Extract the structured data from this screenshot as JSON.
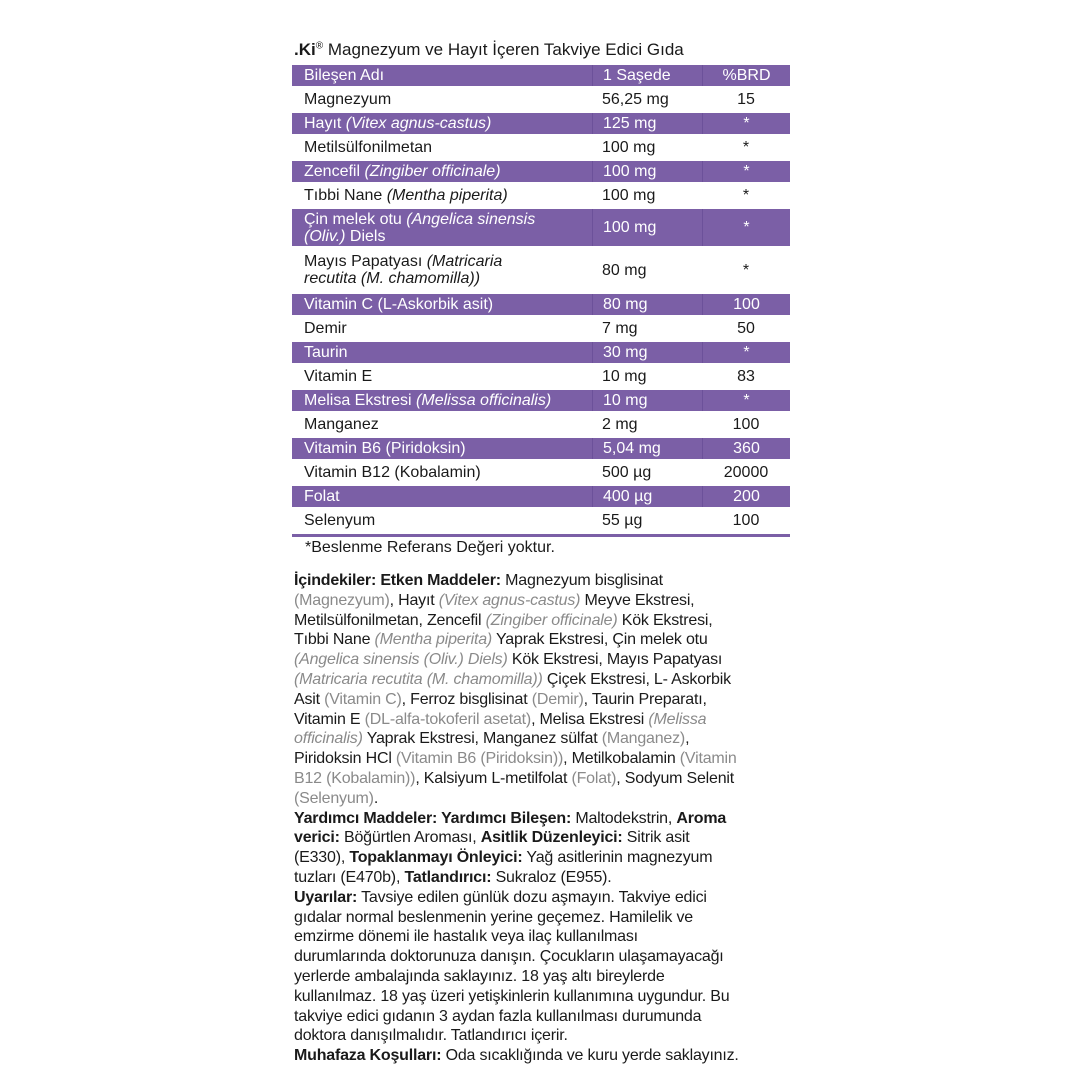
{
  "title": {
    "brand": ".Ki",
    "registered": "®",
    "text": " Magnezyum ve Hayıt İçeren Takviye Edici Gıda"
  },
  "accent_color": "#7b5fa6",
  "table": {
    "headers": [
      "Bileşen Adı",
      "1 Saşede",
      "%BRD"
    ],
    "rows": [
      {
        "name": [
          [
            "n",
            "Magnezyum"
          ]
        ],
        "amount": "56,25 mg",
        "brd": "15"
      },
      {
        "name": [
          [
            "n",
            "Hayıt "
          ],
          [
            "i",
            "(Vitex agnus-castus)"
          ]
        ],
        "amount": "125 mg",
        "brd": "*"
      },
      {
        "name": [
          [
            "n",
            "Metilsülfonilmetan"
          ]
        ],
        "amount": "100 mg",
        "brd": "*"
      },
      {
        "name": [
          [
            "n",
            "Zencefil "
          ],
          [
            "i",
            "(Zingiber officinale)"
          ]
        ],
        "amount": "100 mg",
        "brd": "*"
      },
      {
        "name": [
          [
            "n",
            "Tıbbi Nane "
          ],
          [
            "i",
            "(Mentha piperita)"
          ]
        ],
        "amount": "100 mg",
        "brd": "*"
      },
      {
        "name": [
          [
            "n",
            "Çin melek otu "
          ],
          [
            "i",
            "(Angelica sinensis"
          ],
          [
            "br",
            ""
          ],
          [
            "i",
            "(Oliv.)"
          ],
          [
            "n",
            " Diels"
          ]
        ],
        "amount": "100 mg",
        "brd": "*"
      },
      {
        "name": [
          [
            "n",
            "Mayıs Papatyası "
          ],
          [
            "i",
            "(Matricaria"
          ],
          [
            "br",
            ""
          ],
          [
            "i",
            "recutita (M. chamomilla))"
          ]
        ],
        "amount": "80 mg",
        "brd": "*"
      },
      {
        "name": [
          [
            "n",
            "Vitamin C (L-Askorbik asit)"
          ]
        ],
        "amount": "80 mg",
        "brd": "100"
      },
      {
        "name": [
          [
            "n",
            "Demir"
          ]
        ],
        "amount": "7 mg",
        "brd": "50"
      },
      {
        "name": [
          [
            "n",
            "Taurin"
          ]
        ],
        "amount": "30 mg",
        "brd": "*"
      },
      {
        "name": [
          [
            "n",
            "Vitamin E"
          ]
        ],
        "amount": "10 mg",
        "brd": "83"
      },
      {
        "name": [
          [
            "n",
            "Melisa Ekstresi "
          ],
          [
            "i",
            "(Melissa officinalis)"
          ]
        ],
        "amount": "10 mg",
        "brd": "*"
      },
      {
        "name": [
          [
            "n",
            "Manganez"
          ]
        ],
        "amount": "2 mg",
        "brd": "100"
      },
      {
        "name": [
          [
            "n",
            "Vitamin B6 (Piridoksin)"
          ]
        ],
        "amount": "5,04 mg",
        "brd": "360"
      },
      {
        "name": [
          [
            "n",
            "Vitamin B12 (Kobalamin)"
          ]
        ],
        "amount": "500 µg",
        "brd": "20000"
      },
      {
        "name": [
          [
            "n",
            "Folat"
          ]
        ],
        "amount": "400 µg",
        "brd": "200"
      },
      {
        "name": [
          [
            "n",
            "Selenyum"
          ]
        ],
        "amount": "55 µg",
        "brd": "100"
      }
    ],
    "footnote": "*Beslenme Referans Değeri yoktur."
  },
  "ingredients": [
    [
      [
        "b",
        "İçindekiler: Etken Maddeler:"
      ],
      [
        "n",
        " Magnezyum bisglisinat"
      ]
    ],
    [
      [
        "g",
        "(Magnezyum)"
      ],
      [
        "n",
        ", Hayıt "
      ],
      [
        "gi",
        "(Vitex agnus-castus)"
      ],
      [
        "n",
        " Meyve Ekstresi,"
      ]
    ],
    [
      [
        "n",
        "Metilsülfonilmetan, Zencefil "
      ],
      [
        "gi",
        "(Zingiber officinale)"
      ],
      [
        "n",
        " Kök Ekstresi,"
      ]
    ],
    [
      [
        "n",
        "Tıbbi Nane "
      ],
      [
        "gi",
        "(Mentha piperita)"
      ],
      [
        "n",
        " Yaprak Ekstresi, Çin melek otu"
      ]
    ],
    [
      [
        "gi",
        "(Angelica sinensis (Oliv.) Diels)"
      ],
      [
        "n",
        " Kök Ekstresi, Mayıs Papatyası"
      ]
    ],
    [
      [
        "gi",
        "(Matricaria recutita (M. chamomilla))"
      ],
      [
        "n",
        " Çiçek Ekstresi, L- Askorbik"
      ]
    ],
    [
      [
        "n",
        "Asit "
      ],
      [
        "g",
        "(Vitamin C)"
      ],
      [
        "n",
        ", Ferroz bisglisinat "
      ],
      [
        "g",
        "(Demir)"
      ],
      [
        "n",
        ", Taurin Preparatı,"
      ]
    ],
    [
      [
        "n",
        "Vitamin E "
      ],
      [
        "g",
        "(DL-alfa-tokoferil asetat)"
      ],
      [
        "n",
        ", Melisa Ekstresi "
      ],
      [
        "gi",
        "(Melissa"
      ]
    ],
    [
      [
        "gi",
        "officinalis)"
      ],
      [
        "n",
        " Yaprak Ekstresi, Manganez sülfat "
      ],
      [
        "g",
        "(Manganez)"
      ],
      [
        "n",
        ","
      ]
    ],
    [
      [
        "n",
        "Piridoksin HCl "
      ],
      [
        "g",
        "(Vitamin B6 (Piridoksin))"
      ],
      [
        "n",
        ", Metilkobalamin "
      ],
      [
        "g",
        "(Vitamin"
      ]
    ],
    [
      [
        "g",
        "B12 (Kobalamin))"
      ],
      [
        "n",
        ", Kalsiyum L-metilfolat "
      ],
      [
        "g",
        "(Folat)"
      ],
      [
        "n",
        ", Sodyum Selenit"
      ]
    ],
    [
      [
        "g",
        "(Selenyum)"
      ],
      [
        "n",
        "."
      ]
    ],
    [
      [
        "b",
        "Yardımcı Maddeler: Yardımcı Bileşen:"
      ],
      [
        "n",
        " Maltodekstrin, "
      ],
      [
        "b",
        "Aroma"
      ]
    ],
    [
      [
        "b",
        "verici:"
      ],
      [
        "n",
        " Böğürtlen Aroması, "
      ],
      [
        "b",
        "Asitlik Düzenleyici:"
      ],
      [
        "n",
        " Sitrik asit"
      ]
    ],
    [
      [
        "n",
        "(E330), "
      ],
      [
        "b",
        "Topaklanmayı Önleyici:"
      ],
      [
        "n",
        " Yağ asitlerinin magnezyum"
      ]
    ],
    [
      [
        "n",
        "tuzları (E470b), "
      ],
      [
        "b",
        "Tatlandırıcı:"
      ],
      [
        "n",
        " Sukraloz (E955)."
      ]
    ],
    [
      [
        "b",
        "Uyarılar:"
      ],
      [
        "n",
        " Tavsiye edilen günlük dozu aşmayın. Takviye edici"
      ]
    ],
    [
      [
        "n",
        "gıdalar normal beslenmenin yerine geçemez. Hamilelik ve"
      ]
    ],
    [
      [
        "n",
        "emzirme dönemi ile hastalık veya ilaç kullanılması"
      ]
    ],
    [
      [
        "n",
        "durumlarında doktorunuza danışın. Çocukların ulaşamayacağı"
      ]
    ],
    [
      [
        "n",
        "yerlerde ambalajında saklayınız. 18 yaş altı bireylerde"
      ]
    ],
    [
      [
        "n",
        "kullanılmaz. 18 yaş üzeri yetişkinlerin kullanımına uygundur. Bu"
      ]
    ],
    [
      [
        "n",
        "takviye edici gıdanın 3 aydan fazla kullanılması durumunda"
      ]
    ],
    [
      [
        "n",
        "doktora danışılmalıdır. Tatlandırıcı içerir."
      ]
    ],
    [
      [
        "b",
        "Muhafaza Koşulları:"
      ],
      [
        "n",
        " Oda sıcaklığında ve kuru yerde saklayınız."
      ]
    ]
  ]
}
